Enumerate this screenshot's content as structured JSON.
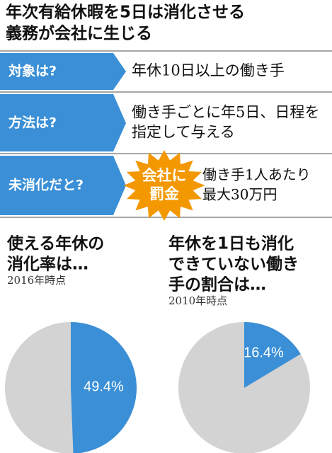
{
  "header": {
    "title": [
      "年次有給休暇を5日は消化させる",
      "義務が会社に生じる"
    ]
  },
  "table": {
    "rows": [
      {
        "label": "対象は?",
        "text": [
          "年休10日以上の働き手"
        ]
      },
      {
        "label": "方法は?",
        "text": [
          "働き手ごとに年5日、日程を",
          "指定して与える"
        ]
      },
      {
        "label": "未消化だと?",
        "badge": [
          "会社に",
          "罰金"
        ],
        "text": [
          "働き手1人あたり",
          "最大30万円"
        ]
      }
    ]
  },
  "chart_data": [
    {
      "type": "pie",
      "title": [
        "使える年休の",
        "消化率は…"
      ],
      "subtitle": "2016年時点",
      "values": [
        49.4
      ],
      "value_labels": [
        "49.4%"
      ],
      "color": "#3a8fd6"
    },
    {
      "type": "pie",
      "title": [
        "年休を1日も消化",
        "できていない働き",
        "手の割合は…"
      ],
      "subtitle": "2010年時点",
      "values": [
        16.4
      ],
      "value_labels": [
        "16.4%"
      ],
      "color": "#3a8fd6"
    }
  ]
}
